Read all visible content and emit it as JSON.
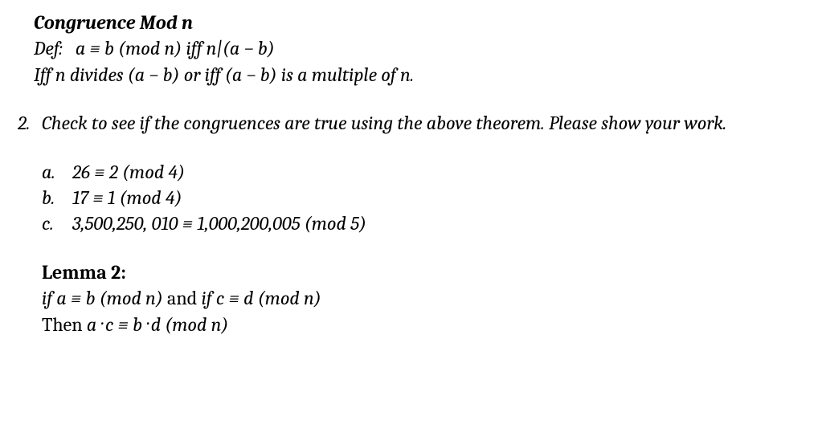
{
  "title": "Congruence Mod n",
  "def_label": "Def:",
  "def_math": "a ≡ b (mod n) iff n|(a − b)",
  "iff_line": "Iff n divides (a − b) or iff (a − b) is a multiple of n.",
  "question_number": "2.",
  "question_text": "Check to see if the congruences are true using the above theorem.  Please show your work.",
  "subs": {
    "a_letter": "a.",
    "a_text": "26 ≡ 2 (mod 4)",
    "b_letter": "b.",
    "b_text": "17 ≡ 1 (mod 4)",
    "c_letter": "c.",
    "c_text": "3,500,250, 010 ≡ 1,000,200,005 (mod 5)"
  },
  "lemma": {
    "title": "Lemma 2:",
    "if_word1": "if ",
    "cond1": "a ≡ b (mod n)",
    "and_word": " and ",
    "if_word2": "if ",
    "cond2": "c ≡ d (mod n)",
    "then_word": "Then ",
    "result": "a  ·  c ≡ b  · d  (mod n)"
  }
}
